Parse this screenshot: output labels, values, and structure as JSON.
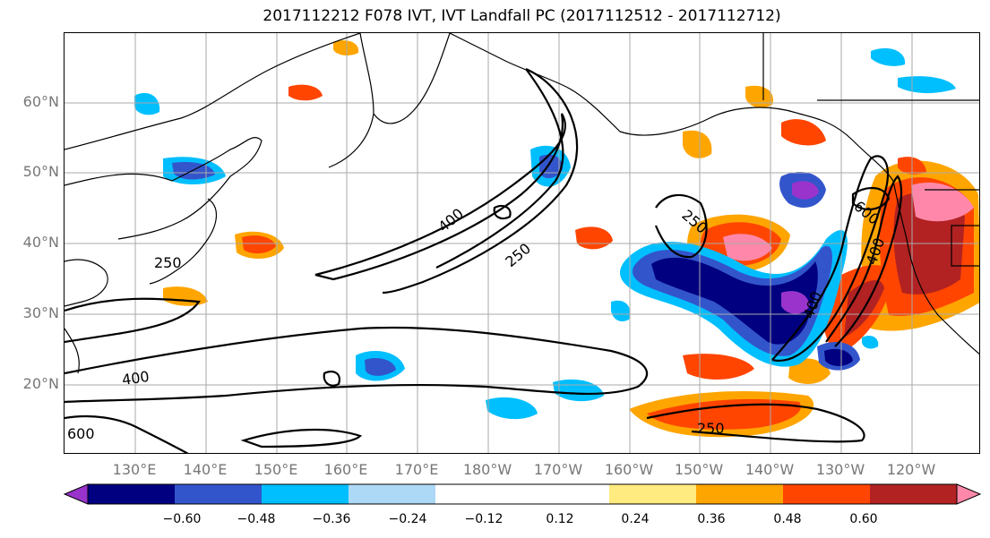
{
  "title": "2017112212 F078 IVT, IVT Landfall PC (2017112512 - 2017112712)",
  "lat_labels": [
    "60°N",
    "50°N",
    "40°N",
    "30°N",
    "20°N"
  ],
  "lon_labels": [
    "130°E",
    "140°E",
    "150°E",
    "160°E",
    "170°E",
    "180°W",
    "170°W",
    "160°W",
    "150°W",
    "140°W",
    "130°W",
    "120°W"
  ],
  "contour_labels": [
    "250",
    "400",
    "250",
    "400",
    "250",
    "600",
    "400",
    "400",
    "600",
    "250",
    "250"
  ],
  "colorbar": {
    "colors": [
      "#9933cc",
      "#000080",
      "#3355cc",
      "#00bfff",
      "#add8f6",
      "#ffffff",
      "#ffffff",
      "#ffeb80",
      "#ffa500",
      "#ff4500",
      "#b22222",
      "#ff88aa"
    ],
    "ticks": [
      "−0.60",
      "−0.48",
      "−0.36",
      "−0.24",
      "−0.12",
      "0.12",
      "0.24",
      "0.36",
      "0.48",
      "0.60"
    ]
  }
}
